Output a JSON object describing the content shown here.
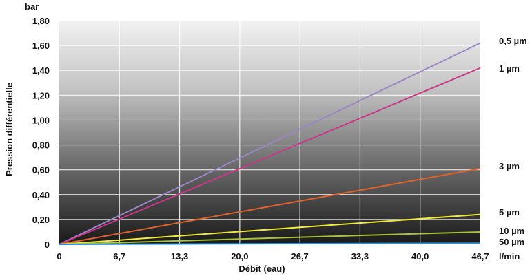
{
  "chart_data": {
    "type": "line",
    "xlabel": "Débit (eau)",
    "xunit": "l/min",
    "ylabel": "Pression différentielle",
    "yunit": "bar",
    "xlim": [
      0,
      46.7
    ],
    "ylim": [
      0,
      1.8
    ],
    "x_ticks": [
      "0",
      "6,7",
      "13,3",
      "20,0",
      "26,7",
      "33,3",
      "40,0",
      "46,7"
    ],
    "y_ticks": [
      "0",
      "0,20",
      "0,40",
      "0,60",
      "0,80",
      "1,00",
      "1,20",
      "1,40",
      "1,60",
      "1,80"
    ],
    "grid": true,
    "background_gradient": [
      "#f2f2f2",
      "#1a1a1a"
    ],
    "series": [
      {
        "name": "0,5 µm",
        "color": "#9b86c4",
        "x": [
          0,
          46.7
        ],
        "values": [
          0,
          1.62
        ]
      },
      {
        "name": "1 µm",
        "color": "#c8388a",
        "x": [
          0,
          46.7
        ],
        "values": [
          0,
          1.42
        ]
      },
      {
        "name": "3 µm",
        "color": "#e0622c",
        "x": [
          0,
          46.7
        ],
        "values": [
          0,
          0.61
        ]
      },
      {
        "name": "5 µm",
        "color": "#f2e93a",
        "x": [
          0,
          46.7
        ],
        "values": [
          0,
          0.24
        ]
      },
      {
        "name": "10 µm",
        "color": "#a8c43a",
        "x": [
          0,
          46.7
        ],
        "values": [
          0,
          0.1
        ]
      },
      {
        "name": "50 µm",
        "color": "#2a8fd6",
        "x": [
          0,
          46.7
        ],
        "values": [
          0,
          0.01
        ]
      }
    ]
  }
}
